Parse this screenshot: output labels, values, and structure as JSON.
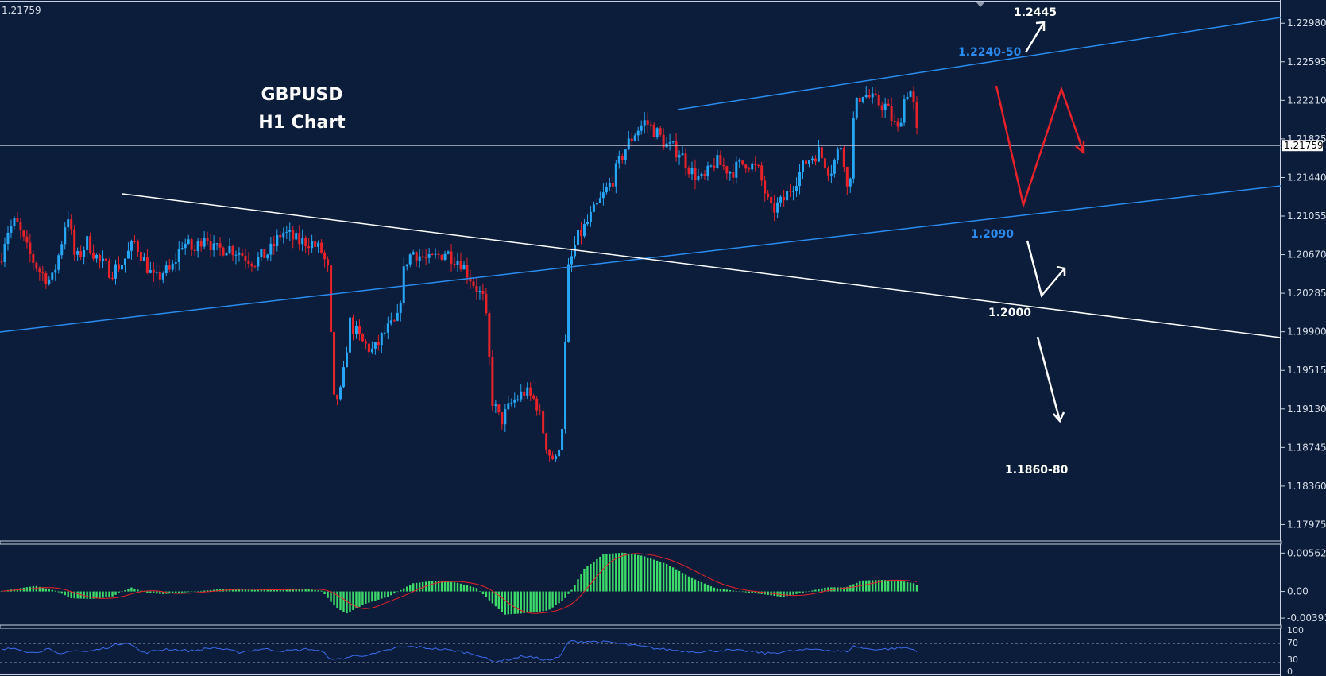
{
  "header": {
    "last_price": "1.21759"
  },
  "annotations": {
    "title_line1": "GBPUSD",
    "title_line2": "H1 Chart",
    "level_top": "1.2445",
    "level_resist": "1.2240-50",
    "level_support": "1.2090",
    "level_mid": "1.2000",
    "level_bottom": "1.1860-80"
  },
  "colors": {
    "background": "#0b1d3a",
    "bull": "#26a6f5",
    "bear": "#e8222a",
    "channel": "#2a8cf0",
    "trendline": "#ffffff",
    "macd_hist": "#3ddc6a",
    "macd_signal": "#e8222a",
    "rsi": "#3a6cf0"
  },
  "chart_data": [
    {
      "type": "candlestick",
      "title": "GBPUSD",
      "subtitle": "H1 Chart",
      "y_ticks": [
        "1.22980",
        "1.22595",
        "1.22210",
        "1.21825",
        "1.21440",
        "1.21055",
        "1.20670",
        "1.20285",
        "1.19900",
        "1.19515",
        "1.19130",
        "1.18745",
        "1.18360",
        "1.17975"
      ],
      "current_price": "1.21759",
      "ylim": [
        1.1782,
        1.2318
      ],
      "num_bars": 290,
      "price_path": [
        [
          0,
          1.206
        ],
        [
          8,
          1.209
        ],
        [
          20,
          1.21
        ],
        [
          35,
          1.207
        ],
        [
          50,
          1.205
        ],
        [
          65,
          1.204
        ],
        [
          75,
          1.207
        ],
        [
          85,
          1.211
        ],
        [
          95,
          1.206
        ],
        [
          110,
          1.208
        ],
        [
          125,
          1.206
        ],
        [
          140,
          1.205
        ],
        [
          155,
          1.206
        ],
        [
          170,
          1.208
        ],
        [
          182,
          1.206
        ],
        [
          195,
          1.204
        ],
        [
          205,
          1.205
        ],
        [
          215,
          1.205
        ],
        [
          230,
          1.208
        ],
        [
          245,
          1.207
        ],
        [
          258,
          1.209
        ],
        [
          270,
          1.207
        ],
        [
          285,
          1.2075
        ],
        [
          300,
          1.207
        ],
        [
          320,
          1.206
        ],
        [
          340,
          1.207
        ],
        [
          355,
          1.209
        ],
        [
          375,
          1.208
        ],
        [
          390,
          1.208
        ],
        [
          405,
          1.207
        ],
        [
          413,
          1.205
        ],
        [
          420,
          1.192
        ],
        [
          430,
          1.193
        ],
        [
          440,
          1.2
        ],
        [
          455,
          1.198
        ],
        [
          470,
          1.197
        ],
        [
          485,
          1.199
        ],
        [
          500,
          1.2
        ],
        [
          510,
          1.206
        ],
        [
          520,
          1.207
        ],
        [
          540,
          1.206
        ],
        [
          560,
          1.207
        ],
        [
          580,
          1.206
        ],
        [
          595,
          1.204
        ],
        [
          610,
          1.202
        ],
        [
          620,
          1.192
        ],
        [
          630,
          1.19
        ],
        [
          645,
          1.192
        ],
        [
          660,
          1.193
        ],
        [
          675,
          1.192
        ],
        [
          690,
          1.187
        ],
        [
          700,
          1.186
        ],
        [
          708,
          1.19
        ],
        [
          715,
          1.205
        ],
        [
          725,
          1.208
        ],
        [
          740,
          1.21
        ],
        [
          755,
          1.212
        ],
        [
          770,
          1.214
        ],
        [
          785,
          1.217
        ],
        [
          800,
          1.219
        ],
        [
          812,
          1.22
        ],
        [
          825,
          1.219
        ],
        [
          840,
          1.2175
        ],
        [
          855,
          1.217
        ],
        [
          870,
          1.215
        ],
        [
          885,
          1.214
        ],
        [
          900,
          1.216
        ],
        [
          920,
          1.215
        ],
        [
          940,
          1.216
        ],
        [
          955,
          1.215
        ],
        [
          970,
          1.211
        ],
        [
          985,
          1.212
        ],
        [
          1000,
          1.214
        ],
        [
          1015,
          1.216
        ],
        [
          1030,
          1.217
        ],
        [
          1045,
          1.215
        ],
        [
          1060,
          1.218
        ],
        [
          1068,
          1.212
        ],
        [
          1075,
          1.221
        ],
        [
          1085,
          1.223
        ],
        [
          1100,
          1.222
        ],
        [
          1115,
          1.2215
        ],
        [
          1130,
          1.219
        ],
        [
          1140,
          1.223
        ],
        [
          1148,
          1.223
        ],
        [
          1152,
          1.22
        ],
        [
          1156,
          1.2176
        ]
      ]
    },
    {
      "type": "histogram",
      "title": "",
      "y_ticks": [
        "0.005628",
        "0.00",
        "-0.00391"
      ],
      "ylim": [
        -0.0046,
        0.0066
      ],
      "hist_path": [
        [
          0,
          0.0
        ],
        [
          20,
          0.0004
        ],
        [
          45,
          0.0008
        ],
        [
          70,
          0.0001
        ],
        [
          90,
          -0.001
        ],
        [
          115,
          -0.0011
        ],
        [
          140,
          -0.0008
        ],
        [
          165,
          0.0006
        ],
        [
          185,
          -0.0002
        ],
        [
          205,
          -0.0004
        ],
        [
          235,
          -0.0001
        ],
        [
          285,
          0.0004
        ],
        [
          320,
          0.0002
        ],
        [
          350,
          0.0003
        ],
        [
          380,
          0.0004
        ],
        [
          405,
          0.0001
        ],
        [
          420,
          -0.002
        ],
        [
          435,
          -0.0033
        ],
        [
          460,
          -0.0018
        ],
        [
          490,
          -0.0007
        ],
        [
          520,
          0.0012
        ],
        [
          550,
          0.0016
        ],
        [
          575,
          0.0013
        ],
        [
          600,
          0.0005
        ],
        [
          615,
          -0.0012
        ],
        [
          635,
          -0.0034
        ],
        [
          660,
          -0.0032
        ],
        [
          690,
          -0.0028
        ],
        [
          710,
          -0.0012
        ],
        [
          720,
          0.0003
        ],
        [
          735,
          0.0033
        ],
        [
          760,
          0.0055
        ],
        [
          785,
          0.0057
        ],
        [
          810,
          0.0052
        ],
        [
          840,
          0.004
        ],
        [
          870,
          0.002
        ],
        [
          900,
          0.0005
        ],
        [
          930,
          0.0
        ],
        [
          960,
          -0.0004
        ],
        [
          985,
          -0.0008
        ],
        [
          1010,
          -0.0002
        ],
        [
          1040,
          0.0006
        ],
        [
          1065,
          0.0006
        ],
        [
          1085,
          0.0016
        ],
        [
          1110,
          0.0017
        ],
        [
          1130,
          0.0016
        ],
        [
          1150,
          0.0012
        ],
        [
          1156,
          0.0008
        ]
      ],
      "signal_lag_bars": 10
    },
    {
      "type": "line",
      "title": "",
      "y_ticks": [
        "100",
        "70",
        "30",
        "0"
      ],
      "ylim": [
        0,
        100
      ],
      "levels": [
        70,
        30
      ],
      "rsi_path": [
        [
          0,
          52
        ],
        [
          20,
          58
        ],
        [
          40,
          45
        ],
        [
          60,
          55
        ],
        [
          75,
          40
        ],
        [
          90,
          52
        ],
        [
          110,
          48
        ],
        [
          130,
          56
        ],
        [
          160,
          72
        ],
        [
          180,
          45
        ],
        [
          210,
          55
        ],
        [
          240,
          50
        ],
        [
          270,
          58
        ],
        [
          300,
          47
        ],
        [
          330,
          55
        ],
        [
          360,
          50
        ],
        [
          390,
          55
        ],
        [
          405,
          48
        ],
        [
          420,
          28
        ],
        [
          445,
          38
        ],
        [
          470,
          42
        ],
        [
          500,
          58
        ],
        [
          520,
          60
        ],
        [
          550,
          55
        ],
        [
          575,
          50
        ],
        [
          600,
          42
        ],
        [
          620,
          25
        ],
        [
          640,
          30
        ],
        [
          660,
          38
        ],
        [
          690,
          28
        ],
        [
          705,
          35
        ],
        [
          715,
          72
        ],
        [
          740,
          73
        ],
        [
          770,
          70
        ],
        [
          790,
          65
        ],
        [
          810,
          60
        ],
        [
          830,
          55
        ],
        [
          860,
          50
        ],
        [
          885,
          48
        ],
        [
          910,
          52
        ],
        [
          940,
          50
        ],
        [
          965,
          44
        ],
        [
          985,
          48
        ],
        [
          1010,
          52
        ],
        [
          1030,
          55
        ],
        [
          1050,
          50
        ],
        [
          1065,
          48
        ],
        [
          1075,
          62
        ],
        [
          1090,
          55
        ],
        [
          1110,
          54
        ],
        [
          1140,
          58
        ],
        [
          1156,
          50
        ]
      ]
    }
  ]
}
